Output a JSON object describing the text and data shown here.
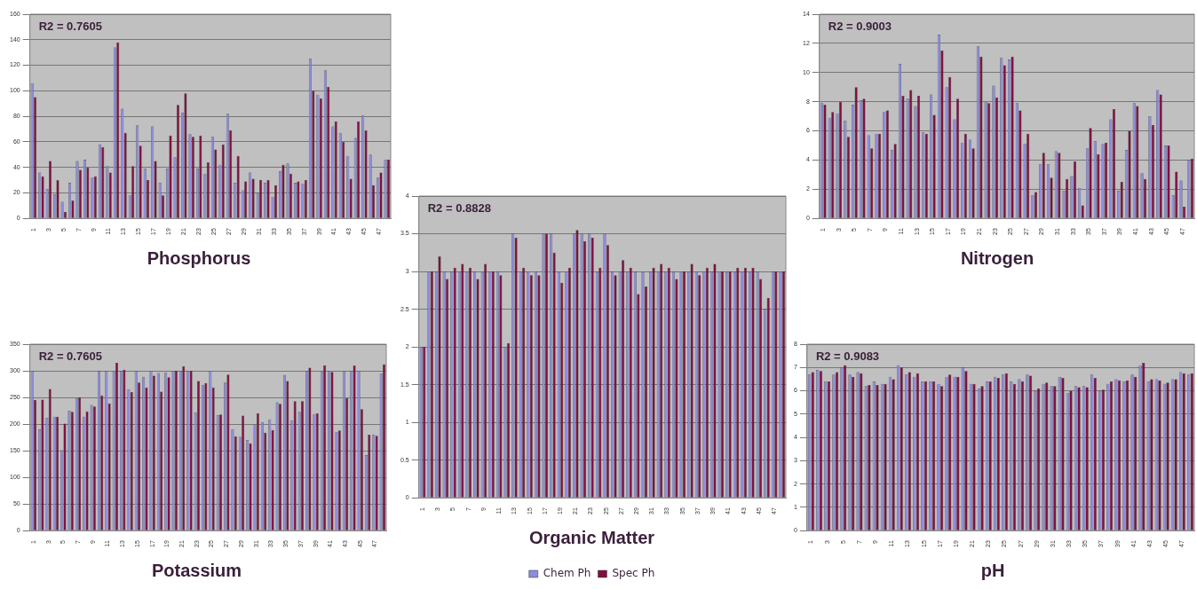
{
  "chart_data": [
    {
      "type": "bar",
      "title": "Phosphorus",
      "annotations": [
        "R2 = 0.7605"
      ],
      "categories": [
        "1",
        null,
        "3",
        null,
        "5",
        null,
        "7",
        null,
        "9",
        null,
        "11",
        null,
        "13",
        null,
        "15",
        null,
        "17",
        null,
        "19",
        null,
        "21",
        null,
        "23",
        null,
        "25",
        null,
        "27",
        null,
        "29",
        null,
        "31",
        null,
        "33",
        null,
        "35",
        null,
        "37",
        null,
        "39",
        null,
        "41",
        null,
        "43",
        null,
        "45",
        null,
        "47",
        null
      ],
      "ylim": [
        0,
        160
      ],
      "yticks": [
        0,
        20,
        40,
        60,
        80,
        100,
        120,
        140,
        160
      ],
      "grid": "y",
      "legend": false,
      "series": [
        {
          "color": "#8c8ce0",
          "values": [
            106,
            36,
            23,
            19,
            13,
            28,
            45,
            46,
            32,
            58,
            41,
            134,
            86,
            18,
            73,
            39,
            72,
            28,
            39,
            48,
            83,
            66,
            39,
            35,
            64,
            42,
            82,
            28,
            22,
            36,
            20,
            28,
            17,
            37,
            43,
            28,
            27,
            125,
            97,
            116,
            72,
            67,
            49,
            63,
            81,
            50,
            32,
            46
          ]
        },
        {
          "color": "#801040",
          "values": [
            95,
            33,
            45,
            30,
            5,
            14,
            38,
            40,
            33,
            56,
            36,
            138,
            67,
            41,
            57,
            30,
            45,
            18,
            65,
            89,
            98,
            64,
            65,
            44,
            54,
            58,
            69,
            49,
            29,
            31,
            30,
            30,
            26,
            42,
            35,
            29,
            30,
            100,
            94,
            103,
            76,
            60,
            31,
            76,
            69,
            26,
            36,
            46
          ]
        }
      ]
    },
    {
      "type": "bar",
      "title": "Nitrogen",
      "annotations": [
        "R2 = 0.9003"
      ],
      "categories": [
        "1",
        null,
        "3",
        null,
        "5",
        null,
        "7",
        null,
        "9",
        null,
        "11",
        null,
        "13",
        null,
        "15",
        null,
        "17",
        null,
        "19",
        null,
        "21",
        null,
        "23",
        null,
        "25",
        null,
        "27",
        null,
        "29",
        null,
        "31",
        null,
        "33",
        null,
        "35",
        null,
        "37",
        null,
        "39",
        null,
        "41",
        null,
        "43",
        null,
        "45",
        null,
        "47",
        null
      ],
      "ylim": [
        0,
        14
      ],
      "yticks": [
        0,
        2,
        4,
        6,
        8,
        10,
        12,
        14
      ],
      "grid": "y",
      "legend": false,
      "series": [
        {
          "color": "#8c8ce0",
          "values": [
            7.9,
            6.9,
            7.2,
            6.7,
            7.8,
            8.1,
            5.7,
            5.8,
            7.3,
            4.7,
            10.6,
            8.2,
            7.7,
            5.9,
            8.5,
            12.6,
            9.0,
            6.8,
            5.2,
            5.4,
            11.8,
            8.0,
            9.1,
            11.0,
            10.9,
            7.9,
            5.1,
            1.6,
            3.7,
            3.7,
            4.6,
            1.9,
            2.9,
            2.1,
            4.8,
            5.3,
            5.1,
            6.8,
            1.9,
            4.7,
            7.9,
            3.1,
            7.0,
            8.8,
            5.0,
            1.6,
            2.6,
            4.0
          ]
        },
        {
          "color": "#801040",
          "values": [
            7.8,
            7.3,
            8.0,
            5.6,
            9.0,
            8.2,
            4.8,
            5.8,
            7.4,
            5.1,
            8.4,
            8.8,
            8.4,
            5.8,
            7.1,
            11.5,
            9.7,
            8.2,
            5.8,
            4.8,
            11.1,
            7.9,
            8.3,
            10.5,
            11.1,
            7.4,
            5.8,
            1.8,
            4.5,
            2.8,
            4.5,
            2.7,
            3.9,
            0.9,
            6.2,
            4.4,
            5.2,
            7.5,
            2.5,
            6.0,
            7.7,
            2.7,
            6.4,
            8.5,
            5.0,
            3.2,
            0.8,
            4.1
          ]
        }
      ]
    },
    {
      "type": "bar",
      "title": "Organic Matter",
      "annotations": [
        "R2 = 0.8828"
      ],
      "categories": [
        "1",
        null,
        "3",
        null,
        "5",
        null,
        "7",
        null,
        "9",
        null,
        "11",
        null,
        "13",
        null,
        "15",
        null,
        "17",
        null,
        "19",
        null,
        "21",
        null,
        "23",
        null,
        "25",
        null,
        "27",
        null,
        "29",
        null,
        "31",
        null,
        "33",
        null,
        "35",
        null,
        "37",
        null,
        "39",
        null,
        "41",
        null,
        "43",
        null,
        "45",
        null,
        "47",
        null
      ],
      "ylim": [
        0,
        4
      ],
      "yticks": [
        0,
        0.5,
        1,
        1.5,
        2,
        2.5,
        3,
        3.5,
        4
      ],
      "grid": "y",
      "legend": "bottom",
      "series": [
        {
          "name": "Chem Ph",
          "color": "#8c8ce0",
          "values": [
            2.0,
            3.0,
            3.0,
            3.0,
            3.0,
            3.0,
            3.0,
            3.0,
            3.0,
            3.0,
            3.0,
            2.0,
            3.5,
            3.0,
            3.0,
            3.0,
            3.5,
            3.5,
            3.0,
            3.0,
            3.5,
            3.5,
            3.5,
            3.0,
            3.5,
            3.0,
            3.0,
            3.0,
            3.0,
            3.0,
            3.0,
            3.0,
            3.0,
            3.0,
            3.0,
            3.0,
            3.0,
            3.0,
            3.0,
            3.0,
            3.0,
            3.0,
            3.0,
            3.0,
            3.0,
            2.5,
            3.0,
            3.0
          ]
        },
        {
          "name": "Spec Ph",
          "color": "#801040",
          "values": [
            2.0,
            3.0,
            3.2,
            2.9,
            3.05,
            3.1,
            3.05,
            2.9,
            3.1,
            3.0,
            2.95,
            2.05,
            3.45,
            3.05,
            2.95,
            2.95,
            3.5,
            3.25,
            2.85,
            3.05,
            3.55,
            3.4,
            3.45,
            3.05,
            3.35,
            2.95,
            3.15,
            3.05,
            2.7,
            2.8,
            3.05,
            3.1,
            3.05,
            2.9,
            3.0,
            3.1,
            2.95,
            3.05,
            3.1,
            3.0,
            3.0,
            3.05,
            3.05,
            3.05,
            2.9,
            2.65,
            3.0,
            3.0
          ]
        }
      ]
    },
    {
      "type": "bar",
      "title": "Potassium",
      "annotations": [
        "R2 = 0.7605"
      ],
      "categories": [
        "1",
        null,
        "3",
        null,
        "5",
        null,
        "7",
        null,
        "9",
        null,
        "11",
        null,
        "13",
        null,
        "15",
        null,
        "17",
        null,
        "19",
        null,
        "21",
        null,
        "23",
        null,
        "25",
        null,
        "27",
        null,
        "29",
        null,
        "31",
        null,
        "33",
        null,
        "35",
        null,
        "37",
        null,
        "39",
        null,
        "41",
        null,
        "43",
        null,
        "45",
        null,
        "47",
        null
      ],
      "ylim": [
        0,
        350
      ],
      "yticks": [
        0,
        50,
        100,
        150,
        200,
        250,
        300,
        350
      ],
      "grid": "y",
      "legend": false,
      "series": [
        {
          "color": "#8c8ce0",
          "values": [
            300,
            190,
            212,
            214,
            151,
            225,
            249,
            214,
            236,
            300,
            300,
            300,
            300,
            265,
            300,
            289,
            300,
            296,
            297,
            300,
            300,
            300,
            222,
            273,
            300,
            217,
            278,
            190,
            176,
            170,
            198,
            204,
            209,
            241,
            292,
            207,
            223,
            300,
            219,
            300,
            300,
            185,
            300,
            300,
            300,
            142,
            180,
            295
          ]
        },
        {
          "color": "#801040",
          "values": [
            245,
            246,
            266,
            214,
            201,
            223,
            250,
            224,
            233,
            254,
            239,
            315,
            302,
            260,
            278,
            269,
            291,
            261,
            288,
            300,
            309,
            300,
            281,
            277,
            269,
            218,
            293,
            177,
            216,
            164,
            220,
            184,
            189,
            238,
            281,
            243,
            243,
            306,
            220,
            310,
            298,
            188,
            249,
            310,
            228,
            180,
            178,
            312
          ]
        }
      ]
    },
    {
      "type": "bar",
      "title": "pH",
      "annotations": [
        "R2 = 0.9083"
      ],
      "categories": [
        "1",
        null,
        "3",
        null,
        "5",
        null,
        "7",
        null,
        "9",
        null,
        "11",
        null,
        "13",
        null,
        "15",
        null,
        "17",
        null,
        "19",
        null,
        "21",
        null,
        "23",
        null,
        "25",
        null,
        "27",
        null,
        "29",
        null,
        "31",
        null,
        "33",
        null,
        "35",
        null,
        "37",
        null,
        "39",
        null,
        "41",
        null,
        "43",
        null,
        "45",
        null,
        "47",
        null
      ],
      "ylim": [
        0,
        8
      ],
      "yticks": [
        0,
        1,
        2,
        3,
        4,
        5,
        6,
        7,
        8
      ],
      "grid": "y",
      "legend": false,
      "series": [
        {
          "color": "#8c8ce0",
          "values": [
            6.7,
            6.9,
            6.4,
            6.7,
            7.0,
            6.7,
            6.8,
            6.2,
            6.4,
            6.3,
            6.6,
            7.1,
            6.7,
            6.6,
            6.4,
            6.4,
            6.3,
            6.6,
            6.6,
            7.0,
            6.3,
            6.1,
            6.4,
            6.6,
            6.7,
            6.4,
            6.5,
            6.7,
            6.0,
            6.3,
            6.2,
            6.6,
            5.9,
            6.2,
            6.2,
            6.7,
            6.0,
            6.3,
            6.5,
            6.4,
            6.7,
            7.1,
            6.4,
            6.5,
            6.3,
            6.5,
            6.8,
            6.7
          ]
        },
        {
          "color": "#801040",
          "values": [
            6.8,
            6.85,
            6.4,
            6.8,
            7.1,
            6.6,
            6.75,
            6.25,
            6.25,
            6.3,
            6.5,
            7.0,
            6.8,
            6.75,
            6.4,
            6.4,
            6.2,
            6.7,
            6.6,
            6.85,
            6.3,
            6.2,
            6.4,
            6.55,
            6.75,
            6.3,
            6.4,
            6.65,
            6.1,
            6.35,
            6.2,
            6.55,
            6.0,
            6.15,
            6.15,
            6.55,
            6.05,
            6.4,
            6.45,
            6.45,
            6.6,
            7.2,
            6.5,
            6.45,
            6.35,
            6.5,
            6.75,
            6.75
          ]
        }
      ]
    }
  ]
}
